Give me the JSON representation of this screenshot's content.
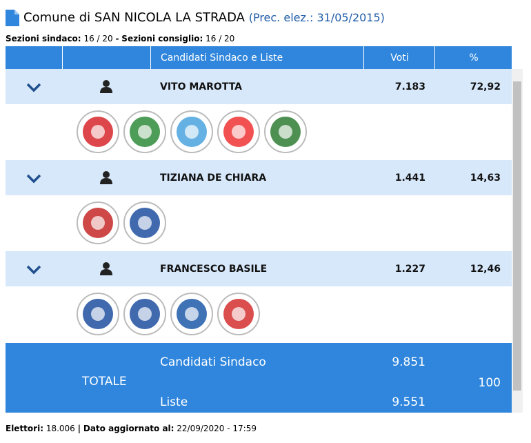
{
  "header": {
    "title": "Comune di SAN NICOLA LA STRADA",
    "previous": "(Prec. elez.: 31/05/2015)"
  },
  "sections": {
    "mayor_label": "Sezioni sindaco:",
    "mayor_value": "16 / 20",
    "separator": "-",
    "council_label": "Sezioni consiglio:",
    "council_value": "16 / 20"
  },
  "table": {
    "columns": [
      "Candidati Sindaco e Liste",
      "Voti",
      "%"
    ],
    "candidates": [
      {
        "name": "VITO MAROTTA",
        "votes": "7.183",
        "pct": "72,92"
      },
      {
        "name": "TIZIANA DE CHIARA",
        "votes": "1.441",
        "pct": "14,63"
      },
      {
        "name": "FRANCESCO BASILE",
        "votes": "1.227",
        "pct": "12,46"
      }
    ],
    "total": {
      "label": "TOTALE",
      "mayor_label": "Candidati Sindaco",
      "mayor_votes": "9.851",
      "lists_label": "Liste",
      "lists_votes": "9.551",
      "pct": "100"
    }
  },
  "footer": {
    "voters_label": "Elettori:",
    "voters": "18.006",
    "separator": "|",
    "updated_label": "Dato aggiornato al:",
    "updated": "22/09/2020 - 17:59"
  }
}
